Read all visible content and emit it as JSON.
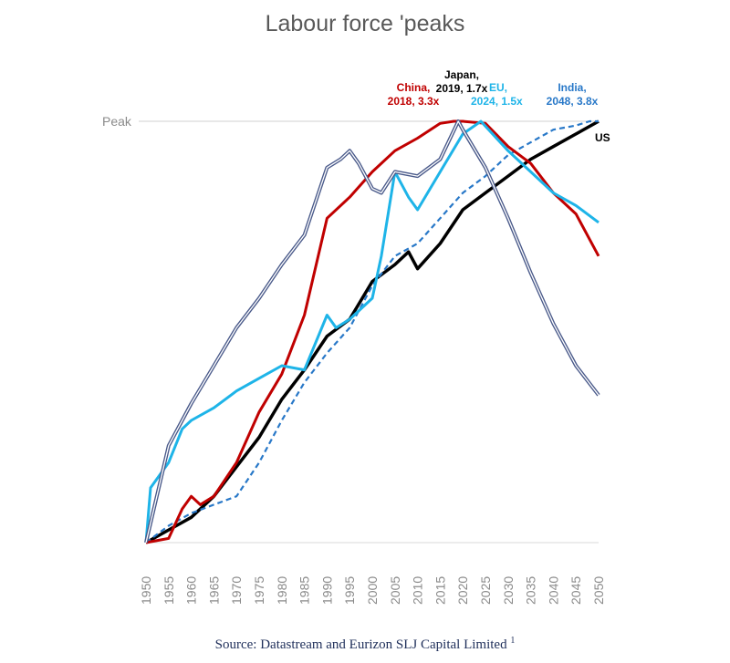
{
  "chart_data": {
    "type": "line",
    "title": "Labour force 'peaks",
    "xlabel": "",
    "ylabel": "",
    "xlim": [
      1950,
      2050
    ],
    "ylim": [
      0,
      1
    ],
    "peak_label": "Peak",
    "x_ticks": [
      "1950",
      "1955",
      "1960",
      "1965",
      "1970",
      "1975",
      "1980",
      "1985",
      "1990",
      "1995",
      "2000",
      "2005",
      "2010",
      "2015",
      "2020",
      "2025",
      "2030",
      "2035",
      "2040",
      "2045",
      "2050"
    ],
    "grid": false,
    "series": [
      {
        "name": "Japan",
        "color": "#4a5a8a",
        "style": "double",
        "x": [
          1950,
          1955,
          1960,
          1965,
          1970,
          1975,
          1980,
          1985,
          1990,
          1993,
          1995,
          1997,
          2000,
          2002,
          2005,
          2010,
          2015,
          2019,
          2020,
          2025,
          2030,
          2035,
          2040,
          2045,
          2050
        ],
        "y": [
          0,
          0.23,
          0.33,
          0.42,
          0.51,
          0.58,
          0.66,
          0.73,
          0.89,
          0.91,
          0.93,
          0.9,
          0.84,
          0.83,
          0.88,
          0.87,
          0.91,
          1.0,
          0.98,
          0.89,
          0.77,
          0.64,
          0.52,
          0.42,
          0.35
        ]
      },
      {
        "name": "China",
        "color": "#c00000",
        "style": "solid",
        "x": [
          1950,
          1955,
          1958,
          1960,
          1962,
          1965,
          1970,
          1975,
          1980,
          1985,
          1990,
          1995,
          2000,
          2005,
          2010,
          2015,
          2018,
          2020,
          2025,
          2030,
          2035,
          2040,
          2045,
          2050
        ],
        "y": [
          0,
          0.01,
          0.08,
          0.11,
          0.09,
          0.11,
          0.19,
          0.31,
          0.4,
          0.54,
          0.77,
          0.82,
          0.88,
          0.93,
          0.96,
          0.995,
          1.0,
          1.0,
          0.995,
          0.94,
          0.9,
          0.83,
          0.78,
          0.68
        ]
      },
      {
        "name": "EU",
        "color": "#1eb4e8",
        "style": "solid",
        "x": [
          1950,
          1951,
          1955,
          1958,
          1960,
          1965,
          1970,
          1975,
          1980,
          1985,
          1990,
          1992,
          1995,
          2000,
          2002,
          2005,
          2008,
          2010,
          2015,
          2020,
          2024,
          2030,
          2035,
          2040,
          2045,
          2050
        ],
        "y": [
          0,
          0.13,
          0.19,
          0.27,
          0.29,
          0.32,
          0.36,
          0.39,
          0.42,
          0.41,
          0.54,
          0.51,
          0.53,
          0.58,
          0.68,
          0.88,
          0.82,
          0.79,
          0.88,
          0.97,
          1.0,
          0.93,
          0.88,
          0.83,
          0.8,
          0.76
        ]
      },
      {
        "name": "India",
        "color": "#2878c8",
        "style": "dashed",
        "x": [
          1950,
          1955,
          1960,
          1965,
          1970,
          1975,
          1980,
          1985,
          1990,
          1995,
          2000,
          2005,
          2010,
          2015,
          2020,
          2025,
          2030,
          2035,
          2040,
          2045,
          2048,
          2050
        ],
        "y": [
          0,
          0.04,
          0.07,
          0.09,
          0.11,
          0.19,
          0.29,
          0.38,
          0.45,
          0.51,
          0.61,
          0.68,
          0.71,
          0.77,
          0.83,
          0.87,
          0.92,
          0.95,
          0.98,
          0.99,
          1.0,
          1.0
        ]
      },
      {
        "name": "US",
        "color": "#000000",
        "style": "solid",
        "x": [
          1950,
          1955,
          1960,
          1965,
          1970,
          1975,
          1980,
          1985,
          1990,
          1995,
          2000,
          2005,
          2008,
          2010,
          2015,
          2020,
          2025,
          2030,
          2035,
          2040,
          2045,
          2050
        ],
        "y": [
          0,
          0.03,
          0.06,
          0.11,
          0.18,
          0.25,
          0.34,
          0.41,
          0.49,
          0.53,
          0.62,
          0.66,
          0.69,
          0.65,
          0.71,
          0.79,
          0.83,
          0.87,
          0.91,
          0.94,
          0.97,
          1.0
        ]
      }
    ],
    "annotations": [
      {
        "id": "china",
        "lines": [
          "China,",
          "2018, 3.3x"
        ],
        "color": "#c00000"
      },
      {
        "id": "japan",
        "lines": [
          "Japan,",
          "2019, 1.7x"
        ],
        "color": "#000000"
      },
      {
        "id": "eu",
        "lines": [
          "EU,",
          "2024, 1.5x"
        ],
        "color": "#1eb4e8"
      },
      {
        "id": "india",
        "lines": [
          "India,",
          "2048, 3.8x"
        ],
        "color": "#2878c8"
      },
      {
        "id": "us",
        "lines": [
          "US"
        ],
        "color": "#000000"
      }
    ]
  },
  "source": {
    "text": "Source: Datastream and Eurizon SLJ Capital Limited",
    "footnote": "1"
  }
}
